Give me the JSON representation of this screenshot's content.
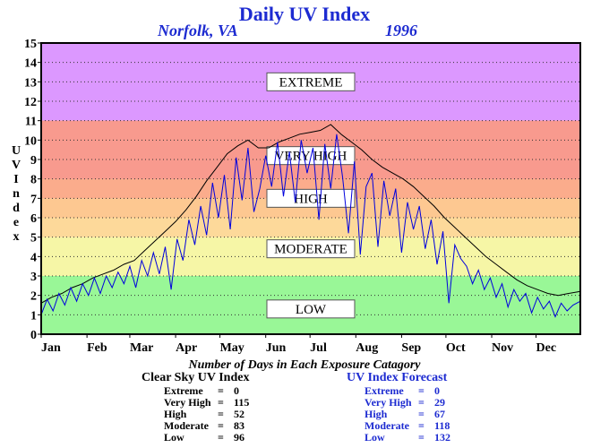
{
  "title": "Daily UV Index",
  "location": "Norfolk, VA",
  "year": "1996",
  "chart_data": {
    "type": "line",
    "title": "Daily UV Index",
    "ylabel": "UV Index",
    "xlabel": "",
    "ylim": [
      0,
      15
    ],
    "xlim": [
      1,
      366
    ],
    "yticks": [
      "0",
      "1",
      "2",
      "3",
      "4",
      "5",
      "6",
      "7",
      "8",
      "9",
      "10",
      "11",
      "12",
      "13",
      "14",
      "15"
    ],
    "xticks": [
      {
        "label": "Jan",
        "day": 1
      },
      {
        "label": "Feb",
        "day": 32
      },
      {
        "label": "Mar",
        "day": 61
      },
      {
        "label": "Apr",
        "day": 92
      },
      {
        "label": "May",
        "day": 122
      },
      {
        "label": "Jun",
        "day": 153
      },
      {
        "label": "Jul",
        "day": 183
      },
      {
        "label": "Aug",
        "day": 214
      },
      {
        "label": "Sep",
        "day": 245
      },
      {
        "label": "Oct",
        "day": 275
      },
      {
        "label": "Nov",
        "day": 306
      },
      {
        "label": "Dec",
        "day": 336
      }
    ],
    "bands": [
      {
        "label": "LOW",
        "from": 0,
        "to": 3,
        "color": "#99f797"
      },
      {
        "label": "MODERATE",
        "from": 3,
        "to": 5,
        "color": "#f6f6a6"
      },
      {
        "label": "HIGH",
        "from": 5,
        "to": 7,
        "color": "#fcf39e"
      },
      {
        "label": "VERY HIGH",
        "from": 7,
        "to": 11,
        "color": "#f89a8e"
      },
      {
        "label": "EXTREME",
        "from": 11,
        "to": 15,
        "color": "#dc98ff"
      }
    ],
    "band_gradient": [
      {
        "from": 5,
        "to": 6,
        "color": "#fdd99a"
      },
      {
        "from": 6,
        "to": 7,
        "color": "#fdc891"
      },
      {
        "from": 7,
        "to": 8,
        "color": "#fbac8c"
      },
      {
        "from": 8,
        "to": 11,
        "color": "#f89a8e"
      }
    ],
    "series": [
      {
        "name": "Clear Sky UV Index",
        "color": "#000000",
        "points": [
          [
            1,
            1.6
          ],
          [
            8,
            1.9
          ],
          [
            15,
            2.1
          ],
          [
            22,
            2.4
          ],
          [
            29,
            2.6
          ],
          [
            36,
            2.9
          ],
          [
            43,
            3.1
          ],
          [
            50,
            3.3
          ],
          [
            57,
            3.6
          ],
          [
            64,
            3.8
          ],
          [
            71,
            4.3
          ],
          [
            78,
            4.8
          ],
          [
            85,
            5.3
          ],
          [
            92,
            5.8
          ],
          [
            99,
            6.4
          ],
          [
            106,
            7.1
          ],
          [
            113,
            7.9
          ],
          [
            120,
            8.6
          ],
          [
            127,
            9.3
          ],
          [
            134,
            9.7
          ],
          [
            141,
            10.0
          ],
          [
            148,
            9.6
          ],
          [
            155,
            9.6
          ],
          [
            162,
            9.9
          ],
          [
            169,
            10.1
          ],
          [
            176,
            10.3
          ],
          [
            183,
            10.4
          ],
          [
            190,
            10.5
          ],
          [
            197,
            10.8
          ],
          [
            204,
            10.3
          ],
          [
            211,
            9.9
          ],
          [
            218,
            9.5
          ],
          [
            225,
            9.0
          ],
          [
            232,
            8.6
          ],
          [
            239,
            8.3
          ],
          [
            246,
            8.0
          ],
          [
            253,
            7.6
          ],
          [
            260,
            7.1
          ],
          [
            267,
            6.6
          ],
          [
            274,
            6.0
          ],
          [
            281,
            5.5
          ],
          [
            288,
            5.0
          ],
          [
            295,
            4.5
          ],
          [
            302,
            4.0
          ],
          [
            309,
            3.6
          ],
          [
            316,
            3.2
          ],
          [
            323,
            2.8
          ],
          [
            330,
            2.5
          ],
          [
            337,
            2.3
          ],
          [
            344,
            2.1
          ],
          [
            351,
            2.0
          ],
          [
            358,
            2.1
          ],
          [
            366,
            2.2
          ]
        ]
      },
      {
        "name": "UV Index Forecast",
        "color": "#0000dd",
        "points": [
          [
            1,
            1.0
          ],
          [
            5,
            1.8
          ],
          [
            9,
            1.2
          ],
          [
            13,
            2.1
          ],
          [
            17,
            1.5
          ],
          [
            21,
            2.4
          ],
          [
            25,
            1.7
          ],
          [
            29,
            2.6
          ],
          [
            33,
            2.0
          ],
          [
            37,
            2.9
          ],
          [
            41,
            2.1
          ],
          [
            45,
            3.0
          ],
          [
            49,
            2.4
          ],
          [
            53,
            3.2
          ],
          [
            57,
            2.6
          ],
          [
            61,
            3.5
          ],
          [
            65,
            2.4
          ],
          [
            69,
            3.8
          ],
          [
            73,
            3.0
          ],
          [
            77,
            4.2
          ],
          [
            81,
            3.1
          ],
          [
            85,
            4.5
          ],
          [
            89,
            2.3
          ],
          [
            93,
            4.9
          ],
          [
            97,
            3.8
          ],
          [
            101,
            5.9
          ],
          [
            105,
            4.6
          ],
          [
            109,
            6.6
          ],
          [
            113,
            5.1
          ],
          [
            117,
            7.8
          ],
          [
            121,
            6.0
          ],
          [
            125,
            8.2
          ],
          [
            129,
            5.4
          ],
          [
            133,
            9.1
          ],
          [
            137,
            6.9
          ],
          [
            141,
            9.6
          ],
          [
            145,
            6.3
          ],
          [
            149,
            7.5
          ],
          [
            153,
            9.2
          ],
          [
            157,
            7.6
          ],
          [
            161,
            9.9
          ],
          [
            165,
            7.1
          ],
          [
            169,
            9.4
          ],
          [
            173,
            6.8
          ],
          [
            177,
            10.0
          ],
          [
            181,
            8.3
          ],
          [
            185,
            9.6
          ],
          [
            189,
            5.9
          ],
          [
            193,
            9.8
          ],
          [
            197,
            7.5
          ],
          [
            201,
            10.3
          ],
          [
            205,
            8.1
          ],
          [
            209,
            5.2
          ],
          [
            213,
            8.9
          ],
          [
            217,
            4.1
          ],
          [
            221,
            7.6
          ],
          [
            225,
            8.3
          ],
          [
            229,
            4.5
          ],
          [
            233,
            7.9
          ],
          [
            237,
            6.1
          ],
          [
            241,
            7.5
          ],
          [
            245,
            4.2
          ],
          [
            249,
            6.8
          ],
          [
            253,
            5.4
          ],
          [
            257,
            6.6
          ],
          [
            261,
            4.4
          ],
          [
            265,
            5.9
          ],
          [
            269,
            3.6
          ],
          [
            273,
            5.3
          ],
          [
            277,
            1.6
          ],
          [
            281,
            4.6
          ],
          [
            285,
            3.9
          ],
          [
            289,
            3.5
          ],
          [
            293,
            2.6
          ],
          [
            297,
            3.3
          ],
          [
            301,
            2.3
          ],
          [
            305,
            2.9
          ],
          [
            309,
            1.9
          ],
          [
            313,
            2.6
          ],
          [
            317,
            1.4
          ],
          [
            321,
            2.3
          ],
          [
            325,
            1.7
          ],
          [
            329,
            2.1
          ],
          [
            333,
            1.1
          ],
          [
            337,
            1.9
          ],
          [
            341,
            1.3
          ],
          [
            345,
            1.7
          ],
          [
            349,
            0.9
          ],
          [
            353,
            1.6
          ],
          [
            357,
            1.2
          ],
          [
            361,
            1.5
          ],
          [
            366,
            1.7
          ]
        ]
      }
    ]
  },
  "stats": {
    "heading": "Number of Days in Each Exposure Catagory",
    "clear_sky": {
      "title": "Clear Sky UV Index",
      "rows": [
        {
          "name": "Extreme",
          "value": "0"
        },
        {
          "name": "Very High",
          "value": "115"
        },
        {
          "name": "High",
          "value": "52"
        },
        {
          "name": "Moderate",
          "value": "83"
        },
        {
          "name": "Low",
          "value": "96"
        }
      ]
    },
    "forecast": {
      "title": "UV Index Forecast",
      "rows": [
        {
          "name": "Extreme",
          "value": "0"
        },
        {
          "name": "Very High",
          "value": "29"
        },
        {
          "name": "High",
          "value": "67"
        },
        {
          "name": "Moderate",
          "value": "118"
        },
        {
          "name": "Low",
          "value": "132"
        }
      ]
    }
  }
}
